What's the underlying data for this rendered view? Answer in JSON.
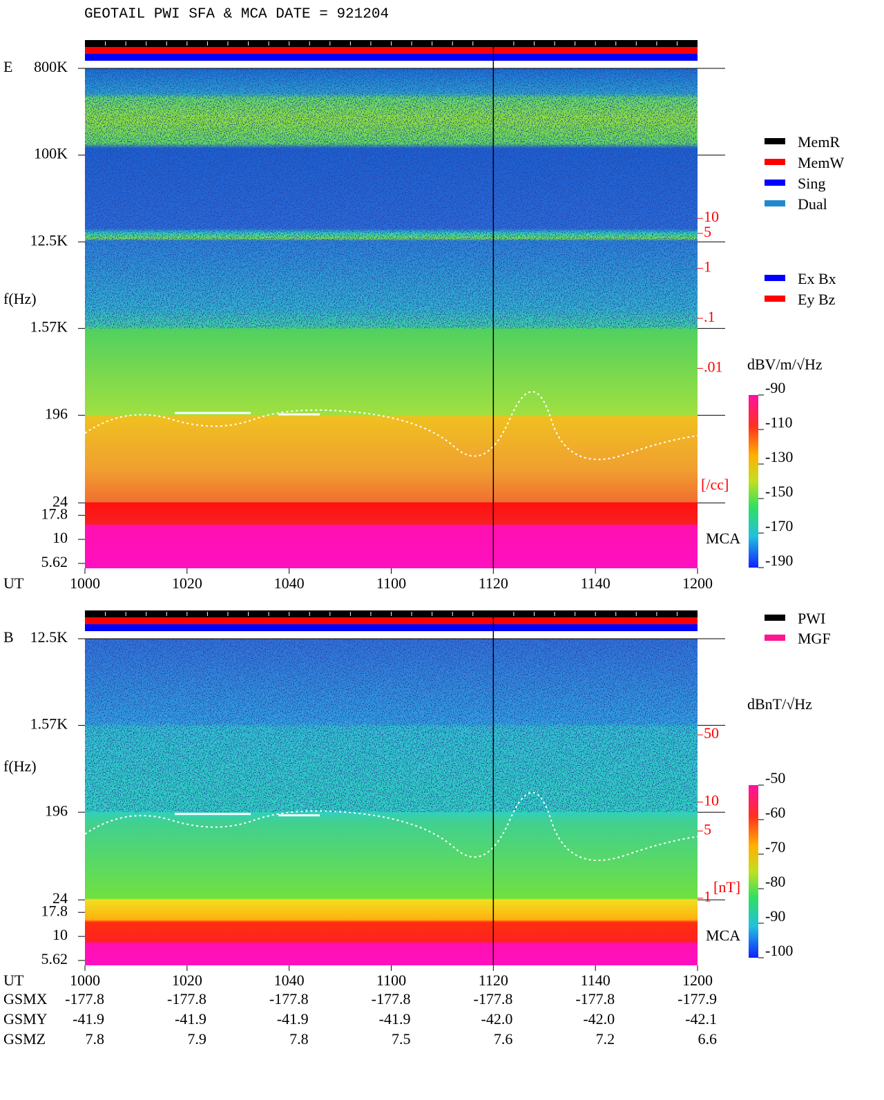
{
  "title": "GEOTAIL  PWI SFA & MCA   DATE = 921204",
  "chart_data": [
    {
      "type": "spectrogram",
      "panel_label": "E",
      "y_label": "f(Hz)",
      "x_label": "UT",
      "log_y": true,
      "ylim": [
        5,
        800000
      ],
      "yticks": [
        {
          "value": 800000,
          "label": "800K"
        },
        {
          "value": 100000,
          "label": "100K"
        },
        {
          "value": 12500,
          "label": "12.5K"
        },
        {
          "value": 1570,
          "label": "1.57K"
        },
        196,
        24,
        17.8,
        10,
        5.62
      ],
      "xlim": [
        600,
        720
      ],
      "xticks": [
        {
          "value": 600,
          "label": "1000"
        },
        {
          "value": 620,
          "label": "1020"
        },
        {
          "value": 640,
          "label": "1040"
        },
        {
          "value": 660,
          "label": "1100"
        },
        {
          "value": 680,
          "label": "1120"
        },
        {
          "value": 700,
          "label": "1140"
        },
        {
          "value": 720,
          "label": "1200"
        }
      ],
      "y2_label": "[/cc]",
      "y2lim": [
        1e-06,
        10000
      ],
      "y2ticks": [
        10,
        5,
        1,
        {
          "value": 0.1,
          "label": ".1"
        },
        {
          "value": 0.01,
          "label": ".01"
        }
      ],
      "mca_label": "MCA",
      "colorbar": {
        "label": "dBV/m/√Hz",
        "lim": [
          -190,
          -90
        ],
        "ticks": [
          -90,
          -110,
          -130,
          -150,
          -170,
          -190
        ]
      }
    },
    {
      "type": "spectrogram",
      "panel_label": "B",
      "y_label": "f(Hz)",
      "x_label": "UT",
      "log_y": true,
      "ylim": [
        5,
        12500
      ],
      "yticks": [
        {
          "value": 12500,
          "label": "12.5K"
        },
        {
          "value": 1570,
          "label": "1.57K"
        },
        196,
        24,
        17.8,
        10,
        5.62
      ],
      "xlim": [
        600,
        720
      ],
      "xticks": [
        {
          "value": 600,
          "label": "1000"
        },
        {
          "value": 620,
          "label": "1020"
        },
        {
          "value": 640,
          "label": "1040"
        },
        {
          "value": 660,
          "label": "1100"
        },
        {
          "value": 680,
          "label": "1120"
        },
        {
          "value": 700,
          "label": "1140"
        },
        {
          "value": 720,
          "label": "1200"
        }
      ],
      "y2_label": "[nT]",
      "y2lim": [
        0.2,
        500
      ],
      "y2ticks": [
        50,
        10,
        5,
        1
      ],
      "mca_label": "MCA",
      "colorbar": {
        "label": "dBnT/√Hz",
        "lim": [
          -100,
          -50
        ],
        "ticks": [
          -50,
          -60,
          -70,
          -80,
          -90,
          -100
        ]
      }
    }
  ],
  "legend_mode": [
    {
      "name": "MemR",
      "color": "#000000"
    },
    {
      "name": "MemW",
      "color": "#ff0000"
    },
    {
      "name": "Sing",
      "color": "#0000ff"
    },
    {
      "name": "Dual",
      "color": "#2288cc"
    }
  ],
  "legend_component": [
    {
      "name": "Ex Bx",
      "color": "#0000ff"
    },
    {
      "name": "Ey Bz",
      "color": "#ff0000"
    }
  ],
  "legend_source": [
    {
      "name": "PWI",
      "color": "#000000"
    },
    {
      "name": "MGF",
      "color": "#ff1493"
    }
  ],
  "orbit": [
    {
      "label": "GSMX",
      "values": [
        "-177.8",
        "-177.8",
        "-177.8",
        "-177.8",
        "-177.8",
        "-177.8",
        "-177.9"
      ]
    },
    {
      "label": "GSMY",
      "values": [
        "-41.9",
        "-41.9",
        "-41.9",
        "-41.9",
        "-42.0",
        "-42.0",
        "-42.1"
      ]
    },
    {
      "label": "GSMZ",
      "values": [
        "7.8",
        "7.9",
        "7.8",
        "7.5",
        "7.6",
        "7.2",
        "6.6"
      ]
    }
  ]
}
